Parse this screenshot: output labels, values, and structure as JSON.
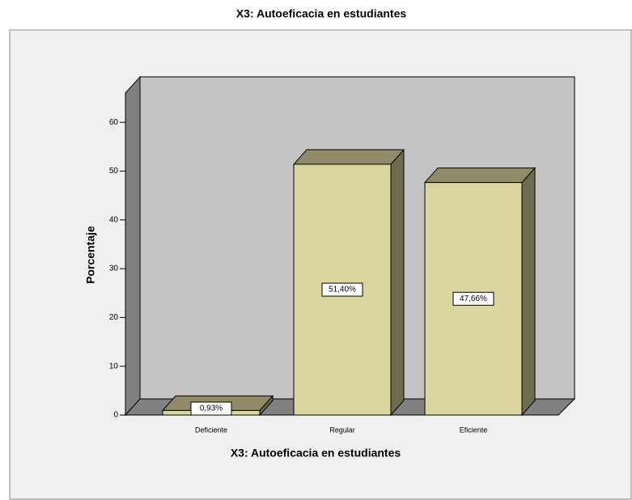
{
  "chart_data": {
    "type": "bar3d",
    "title": "X3: Autoeficacia en estudiantes",
    "x_label": "X3: Autoeficacia en estudiantes",
    "y_label": "Porcentaje",
    "categories": [
      "Deficiente",
      "Regular",
      "Eficiente"
    ],
    "values": [
      0.93,
      51.4,
      47.66
    ],
    "value_labels": [
      "0,93%",
      "51,40%",
      "47,66%"
    ],
    "color": "#ddd5a0",
    "ylim": [
      0,
      66
    ],
    "yticks": [
      0,
      10,
      20,
      30,
      40,
      50,
      60
    ]
  }
}
